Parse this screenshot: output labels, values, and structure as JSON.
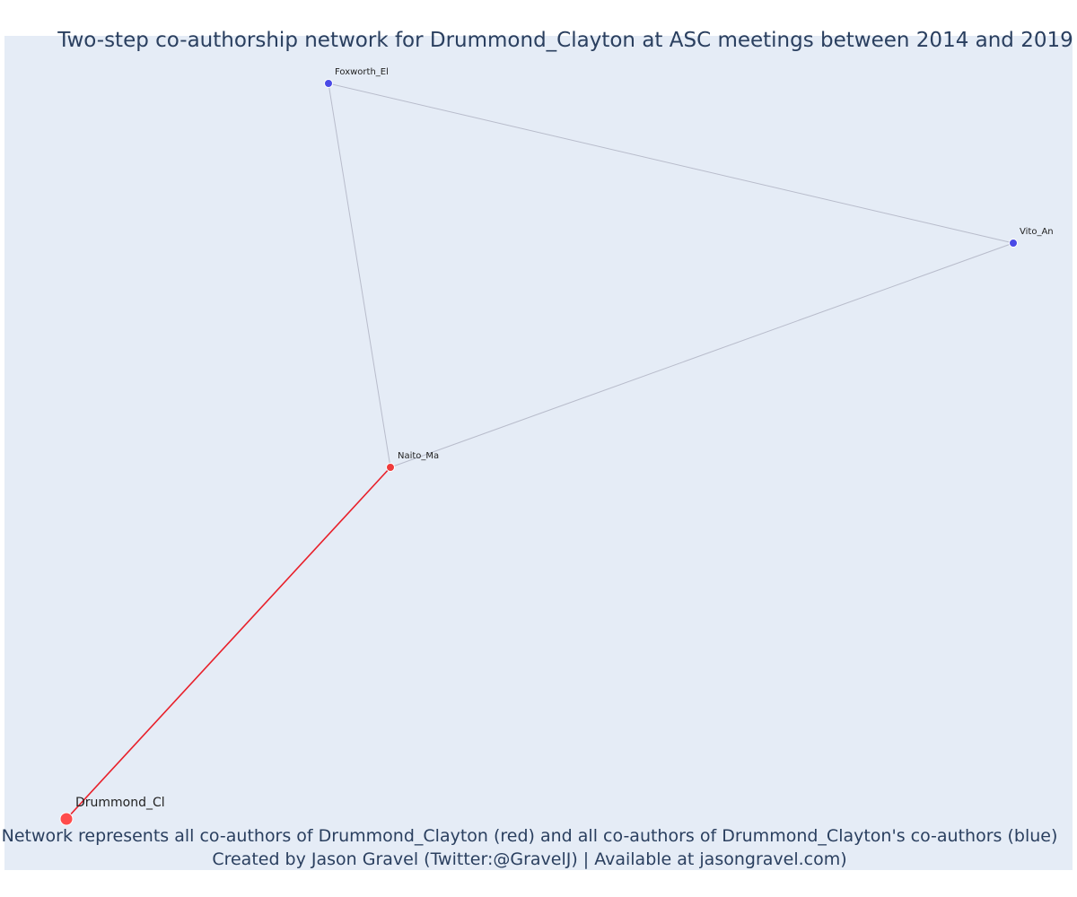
{
  "title": "Two-step co-authorship network for Drummond_Clayton at ASC meetings between 2014 and 2019",
  "caption": {
    "line1": "Network represents all co-authors of Drummond_Clayton (red) and all co-authors of Drummond_Clayton's co-authors (blue)",
    "line2": "Created by Jason Gravel (Twitter:@GravelJ) | Available at jasongravel.com)"
  },
  "colors": {
    "background": "#e5ecf6",
    "focal": "#ff4b4b",
    "first_degree": "#ef3b3b",
    "second_degree": "#4a4ae6",
    "edge_first": "#e8202a",
    "edge_second": "#b8bccb",
    "text": "#2a3f5f"
  },
  "network": {
    "nodes": [
      {
        "id": "drummond",
        "label": "Drummond_Cl",
        "group": "focal"
      },
      {
        "id": "naito",
        "label": "Naito_Ma",
        "group": "first_degree"
      },
      {
        "id": "foxworth",
        "label": "Foxworth_El",
        "group": "second_degree"
      },
      {
        "id": "vito",
        "label": "Vito_An",
        "group": "second_degree"
      }
    ],
    "edges": [
      {
        "source": "drummond",
        "target": "naito",
        "group": "first"
      },
      {
        "source": "naito",
        "target": "foxworth",
        "group": "second"
      },
      {
        "source": "naito",
        "target": "vito",
        "group": "second"
      },
      {
        "source": "foxworth",
        "target": "vito",
        "group": "second"
      }
    ]
  }
}
